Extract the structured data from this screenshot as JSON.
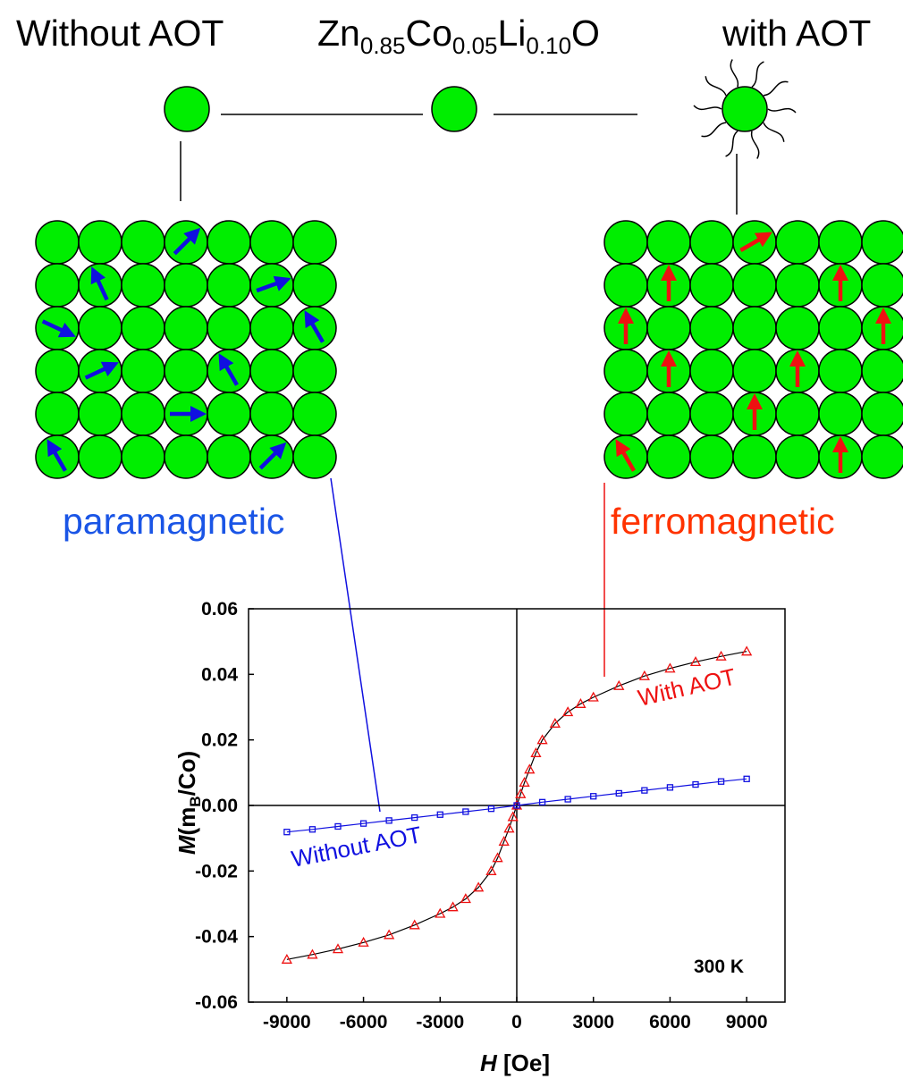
{
  "header": {
    "left_label": "Without AOT",
    "formula": {
      "p1": "Zn",
      "s1": "0.85",
      "p2": "Co",
      "s2": "0.05",
      "p3": "Li",
      "s3": "0.10",
      "p4": "O"
    },
    "right_label": "with AOT"
  },
  "lattice_left": {
    "label": "paramagnetic",
    "label_color": "#1a55e6",
    "arrow_color": "#1010e0",
    "arrows": [
      {
        "row": 0,
        "col": 3,
        "dir_deg": 45
      },
      {
        "row": 1,
        "col": 1,
        "dir_deg": 115
      },
      {
        "row": 1,
        "col": 5,
        "dir_deg": 20
      },
      {
        "row": 2,
        "col": 0,
        "dir_deg": -25
      },
      {
        "row": 2,
        "col": 6,
        "dir_deg": 120
      },
      {
        "row": 3,
        "col": 1,
        "dir_deg": 25
      },
      {
        "row": 3,
        "col": 4,
        "dir_deg": 120
      },
      {
        "row": 4,
        "col": 3,
        "dir_deg": 0
      },
      {
        "row": 5,
        "col": 0,
        "dir_deg": 120
      },
      {
        "row": 5,
        "col": 5,
        "dir_deg": 45
      }
    ]
  },
  "lattice_right": {
    "label": "ferromagnetic",
    "label_color": "#ff3300",
    "arrow_color": "#ee1111",
    "arrows": [
      {
        "row": 0,
        "col": 3,
        "dir_deg": 30
      },
      {
        "row": 1,
        "col": 1,
        "dir_deg": 90
      },
      {
        "row": 1,
        "col": 5,
        "dir_deg": 90
      },
      {
        "row": 2,
        "col": 0,
        "dir_deg": 90
      },
      {
        "row": 2,
        "col": 6,
        "dir_deg": 90
      },
      {
        "row": 3,
        "col": 1,
        "dir_deg": 90
      },
      {
        "row": 3,
        "col": 4,
        "dir_deg": 90
      },
      {
        "row": 4,
        "col": 3,
        "dir_deg": 90
      },
      {
        "row": 5,
        "col": 0,
        "dir_deg": 120
      },
      {
        "row": 5,
        "col": 5,
        "dir_deg": 90
      }
    ]
  },
  "colors": {
    "particle": "#00ee00",
    "outline": "#000000"
  },
  "chart_data": {
    "type": "scatter",
    "xlabel": {
      "italic": "H",
      "rest": " [Oe]"
    },
    "ylabel": {
      "italic": "M",
      "rest": "(m",
      "sub": "B",
      "end": "/Co)"
    },
    "xlim": [
      -10500,
      10500
    ],
    "ylim": [
      -0.06,
      0.06
    ],
    "xticks": [
      "-9000",
      "-6000",
      "-3000",
      "0",
      "3000",
      "6000",
      "9000"
    ],
    "yticks": [
      "0.06",
      "0.04",
      "0.02",
      "0.00",
      "-0.02",
      "-0.04",
      "-0.06"
    ],
    "annotation": "300 K",
    "series": [
      {
        "name": "With AOT",
        "color": "#ee1111",
        "marker": "triangle",
        "x": [
          -9000,
          -8000,
          -7000,
          -6000,
          -5000,
          -4000,
          -3000,
          -2500,
          -2000,
          -1500,
          -1000,
          -750,
          -500,
          -300,
          -150,
          0,
          150,
          300,
          500,
          750,
          1000,
          1500,
          2000,
          2500,
          3000,
          4000,
          5000,
          6000,
          7000,
          8000,
          9000
        ],
        "y": [
          -0.047,
          -0.0455,
          -0.0438,
          -0.0418,
          -0.0395,
          -0.0365,
          -0.033,
          -0.031,
          -0.0285,
          -0.025,
          -0.02,
          -0.016,
          -0.011,
          -0.007,
          -0.0035,
          0,
          0.0035,
          0.007,
          0.011,
          0.016,
          0.02,
          0.025,
          0.0285,
          0.031,
          0.033,
          0.0365,
          0.0395,
          0.0418,
          0.0438,
          0.0455,
          0.047
        ]
      },
      {
        "name": "Without AOT",
        "color": "#1010e0",
        "marker": "square",
        "x": [
          -9000,
          -8000,
          -7000,
          -6000,
          -5000,
          -4000,
          -3000,
          -2000,
          -1000,
          0,
          1000,
          2000,
          3000,
          4000,
          5000,
          6000,
          7000,
          8000,
          9000
        ],
        "y": [
          -0.0081,
          -0.0073,
          -0.0064,
          -0.0055,
          -0.0046,
          -0.0037,
          -0.0028,
          -0.0019,
          -0.001,
          0,
          0.001,
          0.0019,
          0.0028,
          0.0037,
          0.0046,
          0.0055,
          0.0064,
          0.0073,
          0.0081
        ]
      }
    ]
  }
}
